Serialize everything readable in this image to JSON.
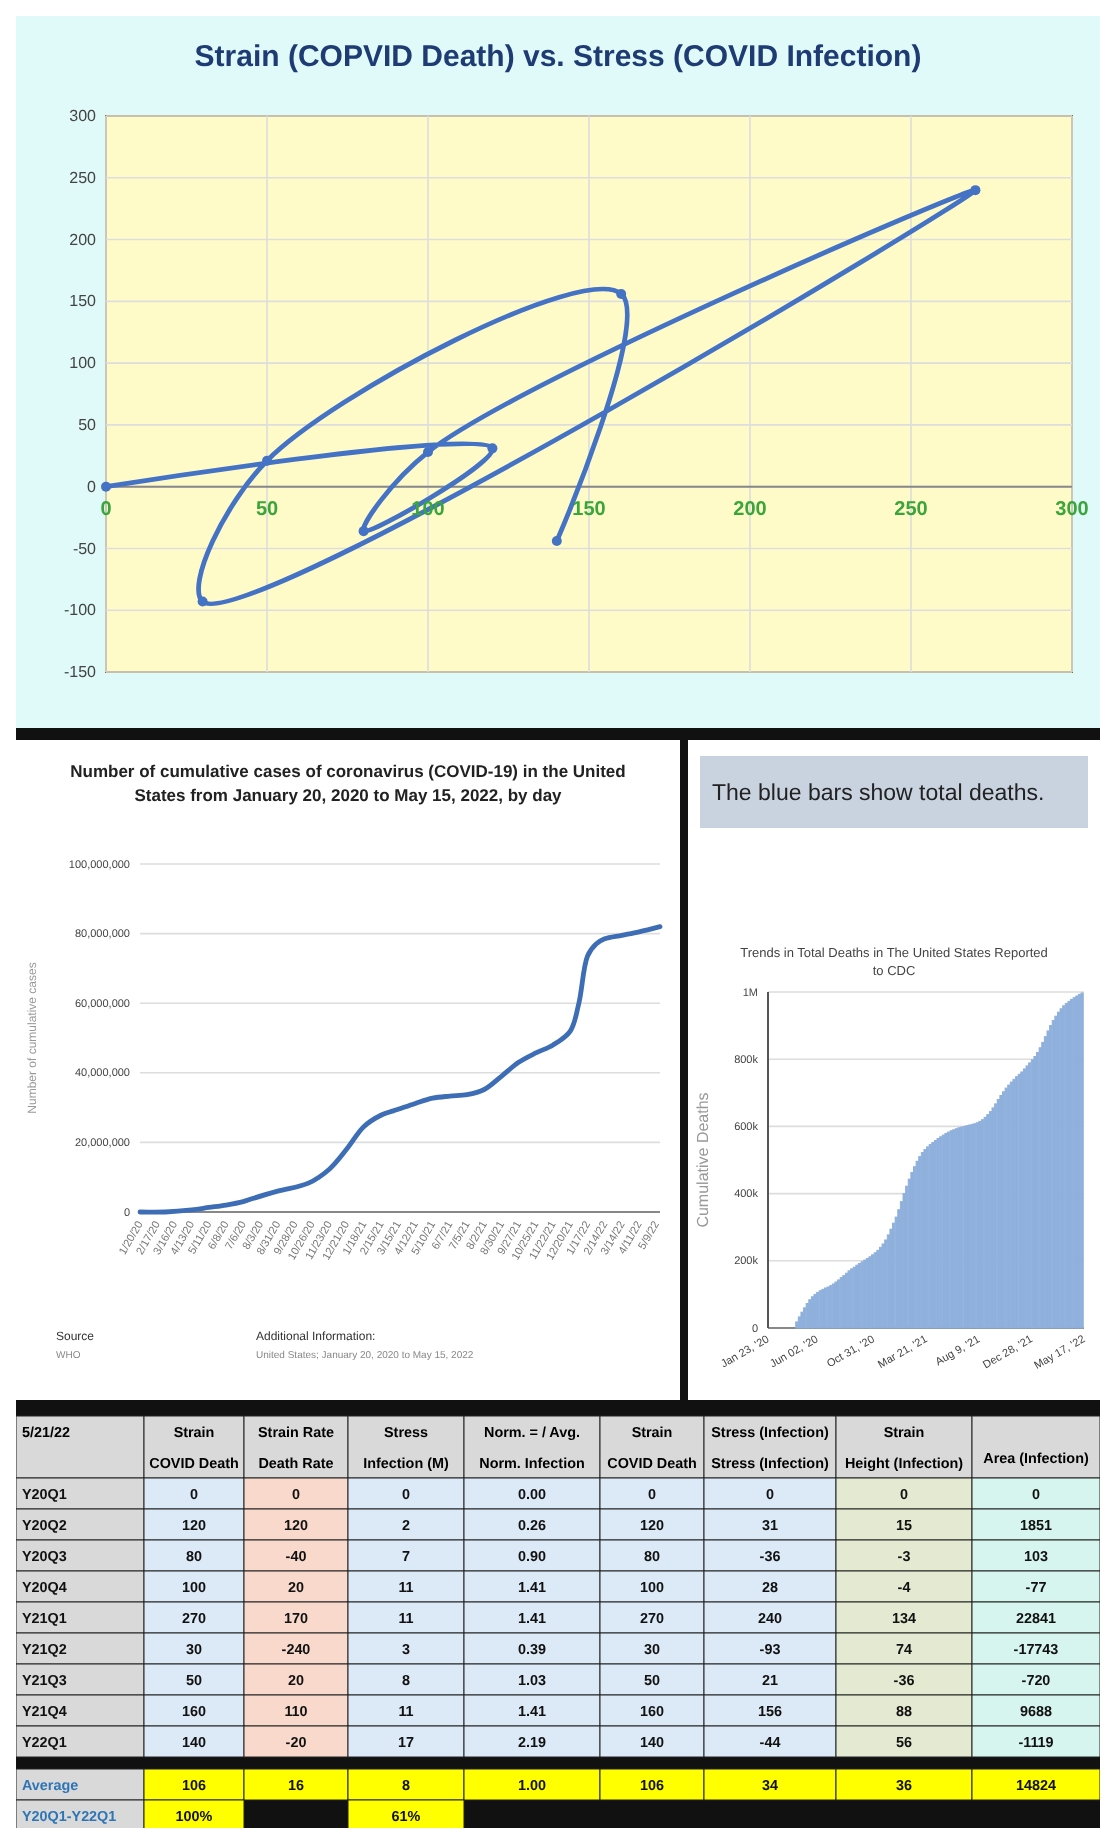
{
  "chart_data": [
    {
      "type": "line",
      "title": "Strain (COPVID Death) vs. Stress (COVID Infection)",
      "x": [
        0,
        120,
        80,
        100,
        270,
        30,
        50,
        160,
        140
      ],
      "values": [
        0,
        31,
        -36,
        28,
        240,
        -93,
        21,
        156,
        -44
      ],
      "color": "#4472c4",
      "marker": "circle",
      "grid": true,
      "xlim": [
        0,
        300
      ],
      "ylim": [
        -150,
        300
      ],
      "xticks": [
        0,
        50,
        100,
        150,
        200,
        250,
        300
      ],
      "yticks": [
        -150,
        -100,
        -50,
        0,
        50,
        100,
        150,
        200,
        250,
        300
      ]
    },
    {
      "type": "line",
      "title": "Number of cumulative cases of coronavirus (COVID-19) in the United States from January 20, 2020 to May 15, 2022, by day",
      "ylabel": "Number of cumulative cases",
      "color": "#3d6db5",
      "grid": "y",
      "x": [
        "2020-01-20",
        "2020-03-01",
        "2020-04-13",
        "2020-05-11",
        "2020-06-08",
        "2020-07-06",
        "2020-07-20",
        "2020-08-31",
        "2020-10-20",
        "2020-11-23",
        "2020-12-21",
        "2021-01-18",
        "2021-02-15",
        "2021-03-15",
        "2021-04-12",
        "2021-05-10",
        "2021-06-07",
        "2021-07-05",
        "2021-08-02",
        "2021-08-30",
        "2021-09-27",
        "2021-10-25",
        "2021-11-22",
        "2021-12-20",
        "2022-01-03",
        "2022-01-17",
        "2022-01-31",
        "2022-02-14",
        "2022-03-14",
        "2022-04-11",
        "2022-05-15"
      ],
      "values": [
        0,
        0,
        600000,
        1300000,
        2000000,
        3000000,
        3800000,
        6000000,
        8300000,
        12300000,
        18000000,
        24500000,
        27800000,
        29500000,
        31200000,
        32700000,
        33300000,
        33700000,
        35200000,
        39000000,
        43000000,
        45700000,
        48000000,
        52000000,
        60000000,
        73500000,
        77000000,
        78500000,
        79500000,
        80500000,
        82000000
      ],
      "xlim": [
        "2020-01-20",
        "2022-05-15"
      ],
      "ylim": [
        0,
        100000000
      ],
      "xticks": [
        {
          "value": "2020-01-20",
          "label": "1/20/20"
        },
        {
          "value": "2020-02-17",
          "label": "2/17/20"
        },
        {
          "value": "2020-03-16",
          "label": "3/16/20"
        },
        {
          "value": "2020-04-13",
          "label": "4/13/20"
        },
        {
          "value": "2020-05-11",
          "label": "5/11/20"
        },
        {
          "value": "2020-06-08",
          "label": "6/8/20"
        },
        {
          "value": "2020-07-06",
          "label": "7/6/20"
        },
        {
          "value": "2020-08-03",
          "label": "8/3/20"
        },
        {
          "value": "2020-08-31",
          "label": "8/31/20"
        },
        {
          "value": "2020-09-28",
          "label": "9/28/20"
        },
        {
          "value": "2020-10-26",
          "label": "10/26/20"
        },
        {
          "value": "2020-11-23",
          "label": "11/23/20"
        },
        {
          "value": "2020-12-21",
          "label": "12/21/20"
        },
        {
          "value": "2021-01-18",
          "label": "1/18/21"
        },
        {
          "value": "2021-02-15",
          "label": "2/15/21"
        },
        {
          "value": "2021-03-15",
          "label": "3/15/21"
        },
        {
          "value": "2021-04-12",
          "label": "4/12/21"
        },
        {
          "value": "2021-05-10",
          "label": "5/10/21"
        },
        {
          "value": "2021-06-07",
          "label": "6/7/21"
        },
        {
          "value": "2021-07-05",
          "label": "7/5/21"
        },
        {
          "value": "2021-08-02",
          "label": "8/2/21"
        },
        {
          "value": "2021-08-30",
          "label": "8/30/21"
        },
        {
          "value": "2021-09-27",
          "label": "9/27/21"
        },
        {
          "value": "2021-10-25",
          "label": "10/25/21"
        },
        {
          "value": "2021-11-22",
          "label": "11/22/21"
        },
        {
          "value": "2021-12-20",
          "label": "12/20/21"
        },
        {
          "value": "2022-01-17",
          "label": "1/17/22"
        },
        {
          "value": "2022-02-14",
          "label": "2/14/22"
        },
        {
          "value": "2022-03-14",
          "label": "3/14/22"
        },
        {
          "value": "2022-04-11",
          "label": "4/11/22"
        },
        {
          "value": "2022-05-09",
          "label": "5/9/22"
        }
      ],
      "yticks": [
        0,
        {
          "value": 20000000,
          "label": "20,000,000"
        },
        {
          "value": 40000000,
          "label": "40,000,000"
        },
        {
          "value": 60000000,
          "label": "60,000,000"
        },
        {
          "value": 80000000,
          "label": "80,000,000"
        },
        {
          "value": 100000000,
          "label": "100,000,000"
        }
      ],
      "annotations": [
        "Source",
        "WHO",
        "Additional Information:",
        "United States; January 20, 2020 to May 15, 2022"
      ]
    },
    {
      "type": "bar",
      "title": "Trends in Total Deaths in The United States Reported to CDC",
      "ylabel": "Cumulative Deaths",
      "color": "#8fb0dc",
      "grid": "y",
      "annotations": [
        "The blue bars show total deaths."
      ],
      "x": [
        "2020-01-23",
        "2020-01-30",
        "2020-02-06",
        "2020-02-13",
        "2020-02-20",
        "2020-02-27",
        "2020-03-05",
        "2020-03-12",
        "2020-03-19",
        "2020-03-26",
        "2020-04-02",
        "2020-04-09",
        "2020-04-16",
        "2020-04-23",
        "2020-04-30",
        "2020-05-07",
        "2020-05-14",
        "2020-05-21",
        "2020-05-28",
        "2020-06-04",
        "2020-06-11",
        "2020-06-18",
        "2020-06-25",
        "2020-07-02",
        "2020-07-09",
        "2020-07-16",
        "2020-07-23",
        "2020-07-30",
        "2020-08-06",
        "2020-08-13",
        "2020-08-20",
        "2020-08-27",
        "2020-09-03",
        "2020-09-10",
        "2020-09-17",
        "2020-09-24",
        "2020-10-01",
        "2020-10-08",
        "2020-10-15",
        "2020-10-22",
        "2020-10-29",
        "2020-11-05",
        "2020-11-12",
        "2020-11-19",
        "2020-11-26",
        "2020-12-03",
        "2020-12-10",
        "2020-12-17",
        "2020-12-24",
        "2020-12-31",
        "2021-01-07",
        "2021-01-14",
        "2021-01-21",
        "2021-01-28",
        "2021-02-04",
        "2021-02-11",
        "2021-02-18",
        "2021-02-25",
        "2021-03-04",
        "2021-03-11",
        "2021-03-18",
        "2021-03-25",
        "2021-04-01",
        "2021-04-08",
        "2021-04-15",
        "2021-04-22",
        "2021-04-29",
        "2021-05-06",
        "2021-05-13",
        "2021-05-20",
        "2021-05-27",
        "2021-06-03",
        "2021-06-10",
        "2021-06-17",
        "2021-06-24",
        "2021-07-01",
        "2021-07-08",
        "2021-07-15",
        "2021-07-22",
        "2021-07-29",
        "2021-08-05",
        "2021-08-12",
        "2021-08-19",
        "2021-08-26",
        "2021-09-02",
        "2021-09-09",
        "2021-09-16",
        "2021-09-23",
        "2021-09-30",
        "2021-10-07",
        "2021-10-14",
        "2021-10-21",
        "2021-10-28",
        "2021-11-04",
        "2021-11-11",
        "2021-11-18",
        "2021-11-25",
        "2021-12-02",
        "2021-12-09",
        "2021-12-16",
        "2021-12-23",
        "2021-12-30",
        "2022-01-06",
        "2022-01-13",
        "2022-01-20",
        "2022-01-27",
        "2022-02-03",
        "2022-02-10",
        "2022-02-17",
        "2022-02-24",
        "2022-03-03",
        "2022-03-10",
        "2022-03-17",
        "2022-03-24",
        "2022-03-31",
        "2022-04-07",
        "2022-04-14",
        "2022-04-21",
        "2022-04-28",
        "2022-05-05",
        "2022-05-12"
      ],
      "values": [
        0,
        0,
        0,
        0,
        0,
        0,
        0,
        0,
        0,
        0,
        0,
        18000,
        33000,
        47000,
        60000,
        73000,
        84000,
        93000,
        100000,
        106000,
        111000,
        115000,
        119000,
        122000,
        126000,
        131000,
        137000,
        143000,
        150000,
        156000,
        163000,
        170000,
        176000,
        181000,
        187000,
        192000,
        197000,
        202000,
        207000,
        212000,
        218000,
        224000,
        231000,
        240000,
        250000,
        262000,
        277000,
        294000,
        312000,
        330000,
        352000,
        376000,
        400000,
        422000,
        443000,
        463000,
        480000,
        496000,
        510000,
        522000,
        531000,
        539000,
        546000,
        552000,
        558000,
        564000,
        569000,
        574000,
        579000,
        583000,
        587000,
        590000,
        593000,
        596000,
        598000,
        600000,
        602000,
        604000,
        606000,
        608000,
        611000,
        615000,
        620000,
        627000,
        635000,
        644000,
        655000,
        667000,
        680000,
        692000,
        703000,
        714000,
        723000,
        732000,
        740000,
        748000,
        755000,
        762000,
        771000,
        780000,
        789000,
        798000,
        808000,
        820000,
        834000,
        850000,
        867000,
        884000,
        900000,
        915000,
        928000,
        940000,
        950000,
        959000,
        966000,
        972000,
        978000,
        983000,
        988000,
        993000,
        997000
      ],
      "xlim": [
        "2020-01-23",
        "2022-05-17"
      ],
      "ylim": [
        0,
        1000000
      ],
      "xticks": [
        {
          "value": "2020-01-23",
          "label": "Jan 23, '20"
        },
        {
          "value": "2020-06-02",
          "label": "Jun 02, '20"
        },
        {
          "value": "2020-10-31",
          "label": "Oct 31, '20"
        },
        {
          "value": "2021-03-21",
          "label": "Mar 21, '21"
        },
        {
          "value": "2021-08-09",
          "label": "Aug 9, '21"
        },
        {
          "value": "2021-12-28",
          "label": "Dec 28, '21"
        },
        {
          "value": "2022-05-17",
          "label": "May 17, '22"
        }
      ],
      "yticks": [
        0,
        {
          "value": 200000,
          "label": "200k"
        },
        {
          "value": 400000,
          "label": "400k"
        },
        {
          "value": 600000,
          "label": "600k"
        },
        {
          "value": 800000,
          "label": "800k"
        },
        {
          "value": 1000000,
          "label": "1M"
        }
      ]
    },
    {
      "type": "heatmap",
      "title": "5/21/22",
      "data_labels": true,
      "categories": [
        "Strain\nCOVID Death",
        "Strain Rate\nDeath Rate",
        "Stress\nInfection (M)",
        "Norm. = / Avg.\nNorm. Infection",
        "Strain\nCOVID Death",
        "Stress (Infection)\nStress (Infection)",
        "Strain\nHeight (Infection)",
        "\nArea (Infection)"
      ],
      "colors": [
        [
          "#dce9f7",
          "#f8d9cc",
          "#dce9f7",
          "#dce9f7",
          "#dce9f7",
          "#dce9f7",
          "#e4ead2",
          "#d6f5ef"
        ],
        [
          "#dce9f7",
          "#f8d9cc",
          "#dce9f7",
          "#dce9f7",
          "#dce9f7",
          "#dce9f7",
          "#e4ead2",
          "#d6f5ef"
        ],
        [
          "#dce9f7",
          "#f8d9cc",
          "#dce9f7",
          "#dce9f7",
          "#dce9f7",
          "#dce9f7",
          "#e4ead2",
          "#d6f5ef"
        ],
        [
          "#dce9f7",
          "#f8d9cc",
          "#dce9f7",
          "#dce9f7",
          "#dce9f7",
          "#dce9f7",
          "#e4ead2",
          "#d6f5ef"
        ],
        [
          "#dce9f7",
          "#f8d9cc",
          "#dce9f7",
          "#dce9f7",
          "#dce9f7",
          "#dce9f7",
          "#e4ead2",
          "#d6f5ef"
        ],
        [
          "#dce9f7",
          "#f8d9cc",
          "#dce9f7",
          "#dce9f7",
          "#dce9f7",
          "#dce9f7",
          "#e4ead2",
          "#d6f5ef"
        ],
        [
          "#dce9f7",
          "#f8d9cc",
          "#dce9f7",
          "#dce9f7",
          "#dce9f7",
          "#dce9f7",
          "#e4ead2",
          "#d6f5ef"
        ],
        [
          "#dce9f7",
          "#f8d9cc",
          "#dce9f7",
          "#dce9f7",
          "#dce9f7",
          "#dce9f7",
          "#e4ead2",
          "#d6f5ef"
        ],
        [
          "#dce9f7",
          "#f8d9cc",
          "#dce9f7",
          "#dce9f7",
          "#dce9f7",
          "#dce9f7",
          "#e4ead2",
          "#d6f5ef"
        ],
        [
          "#ffff00",
          "#ffff00",
          "#ffff00",
          "#ffff00",
          "#ffff00",
          "#ffff00",
          "#ffff00",
          "#ffff00"
        ],
        [
          "#ffff00",
          null,
          "#ffff00",
          null,
          null,
          null,
          null,
          null
        ]
      ],
      "y_categories": [
        "Y20Q1",
        "Y20Q2",
        "Y20Q3",
        "Y20Q4",
        "Y21Q1",
        "Y21Q2",
        "Y21Q3",
        "Y21Q4",
        "Y22Q1",
        "Average",
        "Y20Q1-Y22Q1"
      ],
      "cells": [
        [
          0,
          0,
          0,
          0.0,
          0,
          0,
          0,
          0
        ],
        [
          120,
          120,
          2,
          0.26,
          120,
          31,
          15,
          1851
        ],
        [
          80,
          -40,
          7,
          0.9,
          80,
          -36,
          -3,
          103
        ],
        [
          100,
          20,
          11,
          1.41,
          100,
          28,
          -4,
          -77
        ],
        [
          270,
          170,
          11,
          1.41,
          270,
          240,
          134,
          22841
        ],
        [
          30,
          -240,
          3,
          0.39,
          30,
          -93,
          74,
          -17743
        ],
        [
          50,
          20,
          8,
          1.03,
          50,
          21,
          -36,
          -720
        ],
        [
          160,
          110,
          11,
          1.41,
          160,
          156,
          88,
          9688
        ],
        [
          140,
          -20,
          17,
          2.19,
          140,
          -44,
          56,
          -1119
        ],
        [
          106,
          16,
          8,
          1.0,
          106,
          34,
          36,
          14824
        ],
        [
          100,
          null,
          61,
          null,
          null,
          null,
          null,
          null
        ]
      ],
      "cell_labels": [
        [
          "0",
          "0",
          "0",
          "0.00",
          "0",
          "0",
          "0",
          "0"
        ],
        [
          "120",
          "120",
          "2",
          "0.26",
          "120",
          "31",
          "15",
          "1851"
        ],
        [
          "80",
          "-40",
          "7",
          "0.90",
          "80",
          "-36",
          "-3",
          "103"
        ],
        [
          "100",
          "20",
          "11",
          "1.41",
          "100",
          "28",
          "-4",
          "-77"
        ],
        [
          "270",
          "170",
          "11",
          "1.41",
          "270",
          "240",
          "134",
          "22841"
        ],
        [
          "30",
          "-240",
          "3",
          "0.39",
          "30",
          "-93",
          "74",
          "-17743"
        ],
        [
          "50",
          "20",
          "8",
          "1.03",
          "50",
          "21",
          "-36",
          "-720"
        ],
        [
          "160",
          "110",
          "11",
          "1.41",
          "160",
          "156",
          "88",
          "9688"
        ],
        [
          "140",
          "-20",
          "17",
          "2.19",
          "140",
          "-44",
          "56",
          "-1119"
        ],
        [
          "106",
          "16",
          "8",
          "1.00",
          "106",
          "34",
          "36",
          "14824"
        ],
        [
          "100%",
          null,
          "61%",
          null,
          null,
          null,
          null,
          null
        ]
      ]
    }
  ]
}
